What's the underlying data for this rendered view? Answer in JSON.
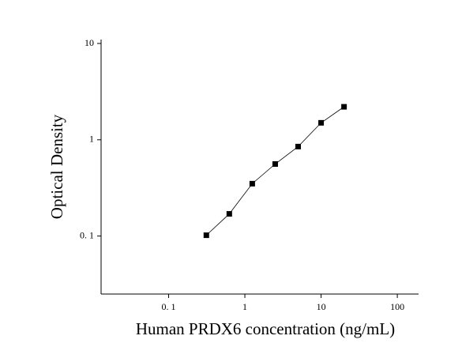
{
  "chart_data": {
    "type": "scatter",
    "x_label": "Human PRDX6 concentration (ng/mL)",
    "y_label": "Optical Density",
    "x": [
      0.3125,
      0.625,
      1.25,
      2.5,
      5,
      10,
      20
    ],
    "series": [
      {
        "values": [
          0.102,
          0.17,
          0.35,
          0.56,
          0.85,
          1.5,
          2.2
        ],
        "color": "#000000"
      }
    ],
    "xscale": "log",
    "yscale": "log",
    "xlim": [
      0.013,
      190
    ],
    "ylim": [
      0.025,
      10
    ],
    "xticks": [
      {
        "value": 0.1,
        "label": "0. 1"
      },
      1,
      10,
      100
    ],
    "yticks": [
      {
        "value": 0.1,
        "label": "0. 1"
      },
      1,
      10
    ],
    "fit_line": true
  }
}
